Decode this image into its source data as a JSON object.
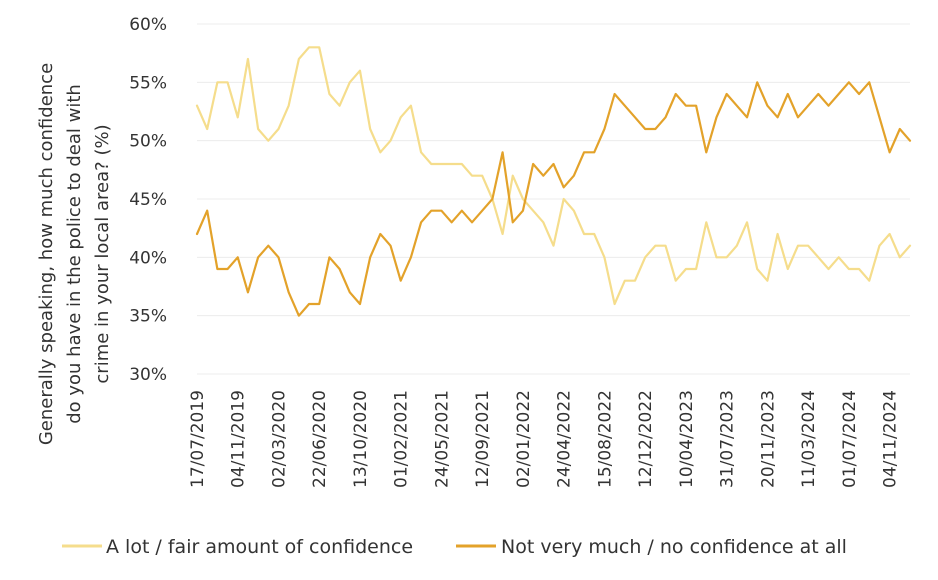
{
  "chart_data": {
    "type": "line",
    "ylabel": "Generally speaking, how much confidence do you have in the police to deal with crime in your local area? (%)",
    "ylabel_lines": [
      "Generally speaking, how much confidence",
      "do you have in the police to deal with",
      "crime in your local area? (%)"
    ],
    "xlabel": "",
    "ylim": [
      30,
      60
    ],
    "y_ticks": [
      "30%",
      "35%",
      "40%",
      "45%",
      "50%",
      "55%",
      "60%"
    ],
    "y_tick_values": [
      30,
      35,
      40,
      45,
      50,
      55,
      60
    ],
    "x_tick_labels": [
      "17/07/2019",
      "04/11/2019",
      "02/03/2020",
      "22/06/2020",
      "13/10/2020",
      "01/02/2021",
      "24/05/2021",
      "12/09/2021",
      "02/01/2022",
      "24/04/2022",
      "15/08/2022",
      "12/12/2022",
      "10/04/2023",
      "31/07/2023",
      "20/11/2023",
      "11/03/2024",
      "01/07/2024",
      "04/11/2024"
    ],
    "x_tick_indices": [
      0,
      4,
      8,
      12,
      16,
      20,
      24,
      28,
      32,
      36,
      40,
      44,
      48,
      52,
      56,
      60,
      64,
      68
    ],
    "grid": "horizontal",
    "legend_position": "bottom",
    "series": [
      {
        "name": "A lot / fair amount of confidence",
        "color": "#F5DD8C",
        "values": [
          53,
          51,
          55,
          55,
          52,
          57,
          51,
          50,
          51,
          53,
          57,
          58,
          58,
          54,
          53,
          55,
          56,
          51,
          49,
          50,
          52,
          53,
          49,
          48,
          48,
          48,
          48,
          47,
          47,
          45,
          42,
          47,
          45,
          44,
          43,
          41,
          45,
          44,
          42,
          42,
          40,
          36,
          38,
          38,
          40,
          41,
          41,
          38,
          39,
          39,
          43,
          40,
          40,
          41,
          43,
          39,
          38,
          42,
          39,
          41,
          41,
          40,
          39,
          40,
          39,
          39,
          38,
          41,
          42,
          40,
          41
        ]
      },
      {
        "name": "Not very much / no confidence at all",
        "color": "#E3A22A",
        "values": [
          42,
          44,
          39,
          39,
          40,
          37,
          40,
          41,
          40,
          37,
          35,
          36,
          36,
          40,
          39,
          37,
          36,
          40,
          42,
          41,
          38,
          40,
          43,
          44,
          44,
          43,
          44,
          43,
          44,
          45,
          49,
          43,
          44,
          48,
          47,
          48,
          46,
          47,
          49,
          49,
          51,
          54,
          53,
          52,
          51,
          51,
          52,
          54,
          53,
          53,
          49,
          52,
          54,
          53,
          52,
          55,
          53,
          52,
          54,
          52,
          53,
          54,
          53,
          54,
          55,
          54,
          55,
          52,
          49,
          51,
          50
        ]
      }
    ]
  }
}
